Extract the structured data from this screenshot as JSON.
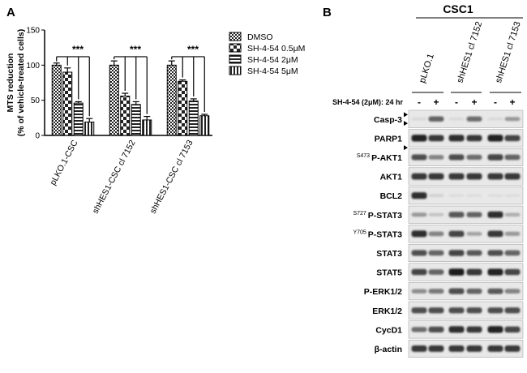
{
  "panel_a": {
    "letter": "A",
    "significance": "***",
    "chart_data": {
      "type": "bar",
      "ylabel": "MTS reduction",
      "ylabel2": "(% of vehicle-treated cells)",
      "ylim": [
        0,
        150
      ],
      "yticks": [
        0,
        50,
        100,
        150
      ],
      "categories": [
        "pLKO.1-CSC",
        "shHES1-CSC cl 7152",
        "shHES1-CSC cl 7153"
      ],
      "series": [
        {
          "name": "DMSO",
          "pattern": "p-dmso",
          "values": [
            100,
            100,
            100
          ],
          "errors": [
            3,
            6,
            6
          ]
        },
        {
          "name": "SH-4-54 0.5μM",
          "pattern": "p-check",
          "values": [
            90,
            56,
            77
          ],
          "errors": [
            6,
            4,
            2
          ]
        },
        {
          "name": "SH-4-54 2μM",
          "pattern": "p-hstripe",
          "values": [
            46,
            44,
            49
          ],
          "errors": [
            2,
            4,
            3
          ]
        },
        {
          "name": "SH-4-54 5μM",
          "pattern": "p-vstripe",
          "values": [
            19,
            22,
            28
          ],
          "errors": [
            5,
            5,
            2
          ]
        }
      ],
      "legend_position": "top-right"
    }
  },
  "panel_b": {
    "letter": "B",
    "group_label": "CSC1",
    "lane_groups": [
      "pLKO.1",
      "shHES1 cl 7152",
      "shHES1 cl 7153"
    ],
    "treatment_label": "SH-4-54 (2μM): 24 hr",
    "lane_signs": [
      "-",
      "+",
      "-",
      "+",
      "-",
      "+"
    ],
    "blots": [
      {
        "label": "Casp-3",
        "pre": "",
        "arrows": 2,
        "bands": [
          0.05,
          0.6,
          0.05,
          0.55,
          0.05,
          0.35
        ]
      },
      {
        "label": "PARP1",
        "pre": "",
        "arrows": 1,
        "bands": [
          0.9,
          0.8,
          0.85,
          0.8,
          0.9,
          0.75
        ]
      },
      {
        "label": "P-AKT1",
        "pre": "S473",
        "arrows": 0,
        "bands": [
          0.7,
          0.45,
          0.7,
          0.55,
          0.75,
          0.6
        ]
      },
      {
        "label": "AKT1",
        "pre": "",
        "arrows": 0,
        "bands": [
          0.8,
          0.8,
          0.8,
          0.8,
          0.8,
          0.8
        ]
      },
      {
        "label": "BCL2",
        "pre": "",
        "arrows": 0,
        "bands": [
          0.85,
          0.08,
          0.03,
          0.03,
          0.03,
          0.03
        ]
      },
      {
        "label": "P-STAT3",
        "pre": "S727",
        "arrows": 0,
        "bands": [
          0.35,
          0.15,
          0.65,
          0.6,
          0.85,
          0.25
        ]
      },
      {
        "label": "P-STAT3",
        "pre": "Y705",
        "arrows": 0,
        "bands": [
          0.85,
          0.45,
          0.75,
          0.3,
          0.8,
          0.35
        ]
      },
      {
        "label": "STAT3",
        "pre": "",
        "arrows": 0,
        "bands": [
          0.7,
          0.6,
          0.75,
          0.65,
          0.7,
          0.6
        ]
      },
      {
        "label": "STAT5",
        "pre": "",
        "arrows": 0,
        "bands": [
          0.75,
          0.6,
          0.95,
          0.8,
          0.9,
          0.75
        ]
      },
      {
        "label": "P-ERK1/2",
        "pre": "",
        "arrows": 0,
        "bands": [
          0.4,
          0.5,
          0.7,
          0.6,
          0.65,
          0.45
        ]
      },
      {
        "label": "ERK1/2",
        "pre": "",
        "arrows": 0,
        "bands": [
          0.7,
          0.7,
          0.7,
          0.7,
          0.7,
          0.7
        ]
      },
      {
        "label": "CycD1",
        "pre": "",
        "arrows": 0,
        "bands": [
          0.55,
          0.7,
          0.85,
          0.8,
          0.9,
          0.75
        ]
      },
      {
        "label": "β-actin",
        "pre": "",
        "arrows": 0,
        "bands": [
          0.8,
          0.8,
          0.8,
          0.8,
          0.8,
          0.8
        ]
      }
    ]
  }
}
